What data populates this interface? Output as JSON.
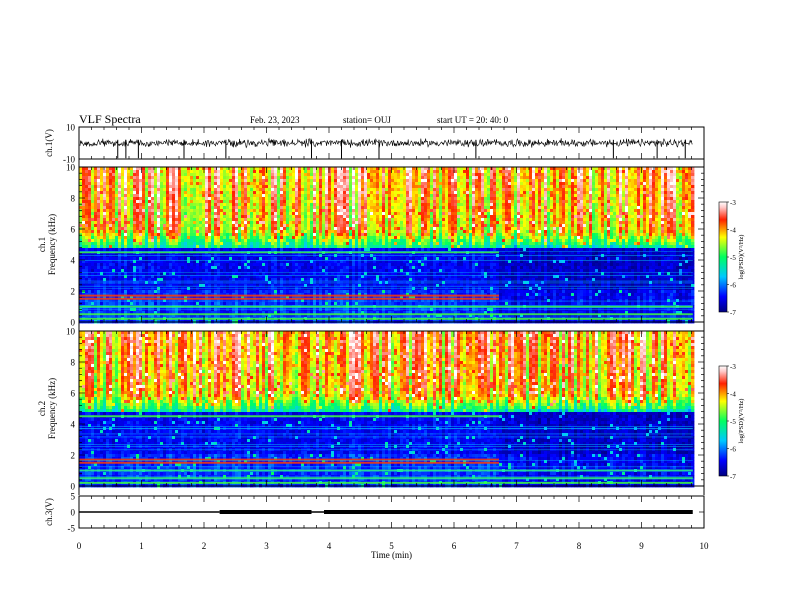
{
  "header": {
    "title": "VLF Spectra",
    "date": "Feb. 23, 2023",
    "station": "station= OUJ",
    "start": "start  UT  =   20: 40: 0"
  },
  "chart_data": [
    {
      "type": "line",
      "panel": "waveform-ch1",
      "ylabel": "ch.1(V)",
      "ylim": [
        -10,
        10
      ],
      "yticks": [
        10,
        -10
      ],
      "xlim": [
        0,
        10
      ],
      "baseline_value": 0,
      "noise_amplitude": 2,
      "spike_times_min": [
        0.62,
        0.75,
        0.95,
        1.68,
        2.35,
        3.72,
        4.2,
        4.8,
        6.35,
        8.55,
        9.25,
        9.7
      ]
    },
    {
      "type": "heatmap",
      "panel": "spectrogram-ch1",
      "ylabel": "ch.1\nFrequency (kHz)",
      "ylim": [
        0,
        10
      ],
      "yticks": [
        0,
        2,
        4,
        6,
        8,
        10
      ],
      "xlim": [
        0,
        10
      ],
      "data_end_min": 9.82,
      "band_change_min": 6.72,
      "tones_khz": [
        4.5,
        1.7,
        1.5,
        1.0,
        0.5,
        0.2
      ],
      "colorbar": {
        "label": "log(PSD)(V²/Hz)",
        "ticks": [
          -3,
          -4,
          -5,
          -6,
          -7
        ],
        "range": [
          -7,
          -3
        ]
      }
    },
    {
      "type": "heatmap",
      "panel": "spectrogram-ch2",
      "ylabel": "ch.2\nFrequency (kHz)",
      "ylim": [
        0,
        10
      ],
      "yticks": [
        0,
        2,
        4,
        6,
        8,
        10
      ],
      "xlim": [
        0,
        10
      ],
      "data_end_min": 9.82,
      "band_change_min": 6.72,
      "tones_khz": [
        4.5,
        1.7,
        1.5,
        1.0,
        0.5,
        0.2
      ],
      "colorbar": {
        "label": "log(PSD)(V²/Hz)",
        "ticks": [
          -3,
          -4,
          -5,
          -6,
          -7
        ],
        "range": [
          -7,
          -3
        ]
      }
    },
    {
      "type": "line",
      "panel": "waveform-ch3",
      "ylabel": "ch.3(V)",
      "ylim": [
        -5,
        5
      ],
      "yticks": [
        5,
        0,
        -5
      ],
      "xlim": [
        0,
        10
      ],
      "xlabel": "Time  (min)",
      "xticks": [
        0,
        1,
        2,
        3,
        4,
        5,
        6,
        7,
        8,
        9,
        10
      ],
      "level_value": 0,
      "segments": [
        {
          "x": [
            0,
            2.25
          ],
          "thickness": "thin"
        },
        {
          "x": [
            2.25,
            3.72
          ],
          "thickness": "thick"
        },
        {
          "x": [
            3.72,
            3.92
          ],
          "thickness": "thin"
        },
        {
          "x": [
            3.92,
            9.82
          ],
          "thickness": "thick"
        }
      ]
    }
  ]
}
